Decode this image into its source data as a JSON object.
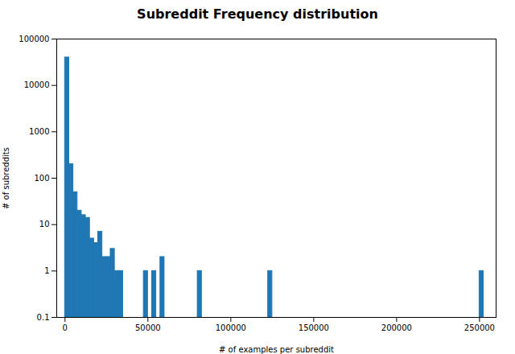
{
  "chart_data": {
    "type": "bar",
    "title": "Subreddit Frequency distribution",
    "x_label": "# of examples per subreddit",
    "y_label": "# of subreddits",
    "color": "#1f77b4",
    "log": "y",
    "x": [
      0,
      2500,
      5000,
      7500,
      10000,
      12500,
      15000,
      17500,
      20000,
      22500,
      25000,
      27500,
      30000,
      32500,
      47500,
      52500,
      57500,
      80000,
      122500,
      250000
    ],
    "x2": [
      2500,
      5000,
      7500,
      10000,
      12500,
      15000,
      17500,
      20000,
      22500,
      25000,
      27500,
      30000,
      32500,
      35000,
      50000,
      55000,
      60000,
      82500,
      125000,
      252500
    ],
    "values": [
      40000,
      200,
      50,
      20,
      16,
      14,
      5,
      4,
      7,
      2,
      2,
      3,
      1,
      1,
      1,
      1,
      2,
      1,
      1,
      1
    ],
    "xlim": [
      -5000,
      260000
    ],
    "xticks": [
      0,
      50000,
      100000,
      150000,
      200000,
      250000
    ],
    "ylim": [
      0.1,
      100000
    ],
    "yticks": [
      0.1,
      1,
      10,
      100,
      1000,
      10000,
      100000
    ],
    "grid": false
  }
}
